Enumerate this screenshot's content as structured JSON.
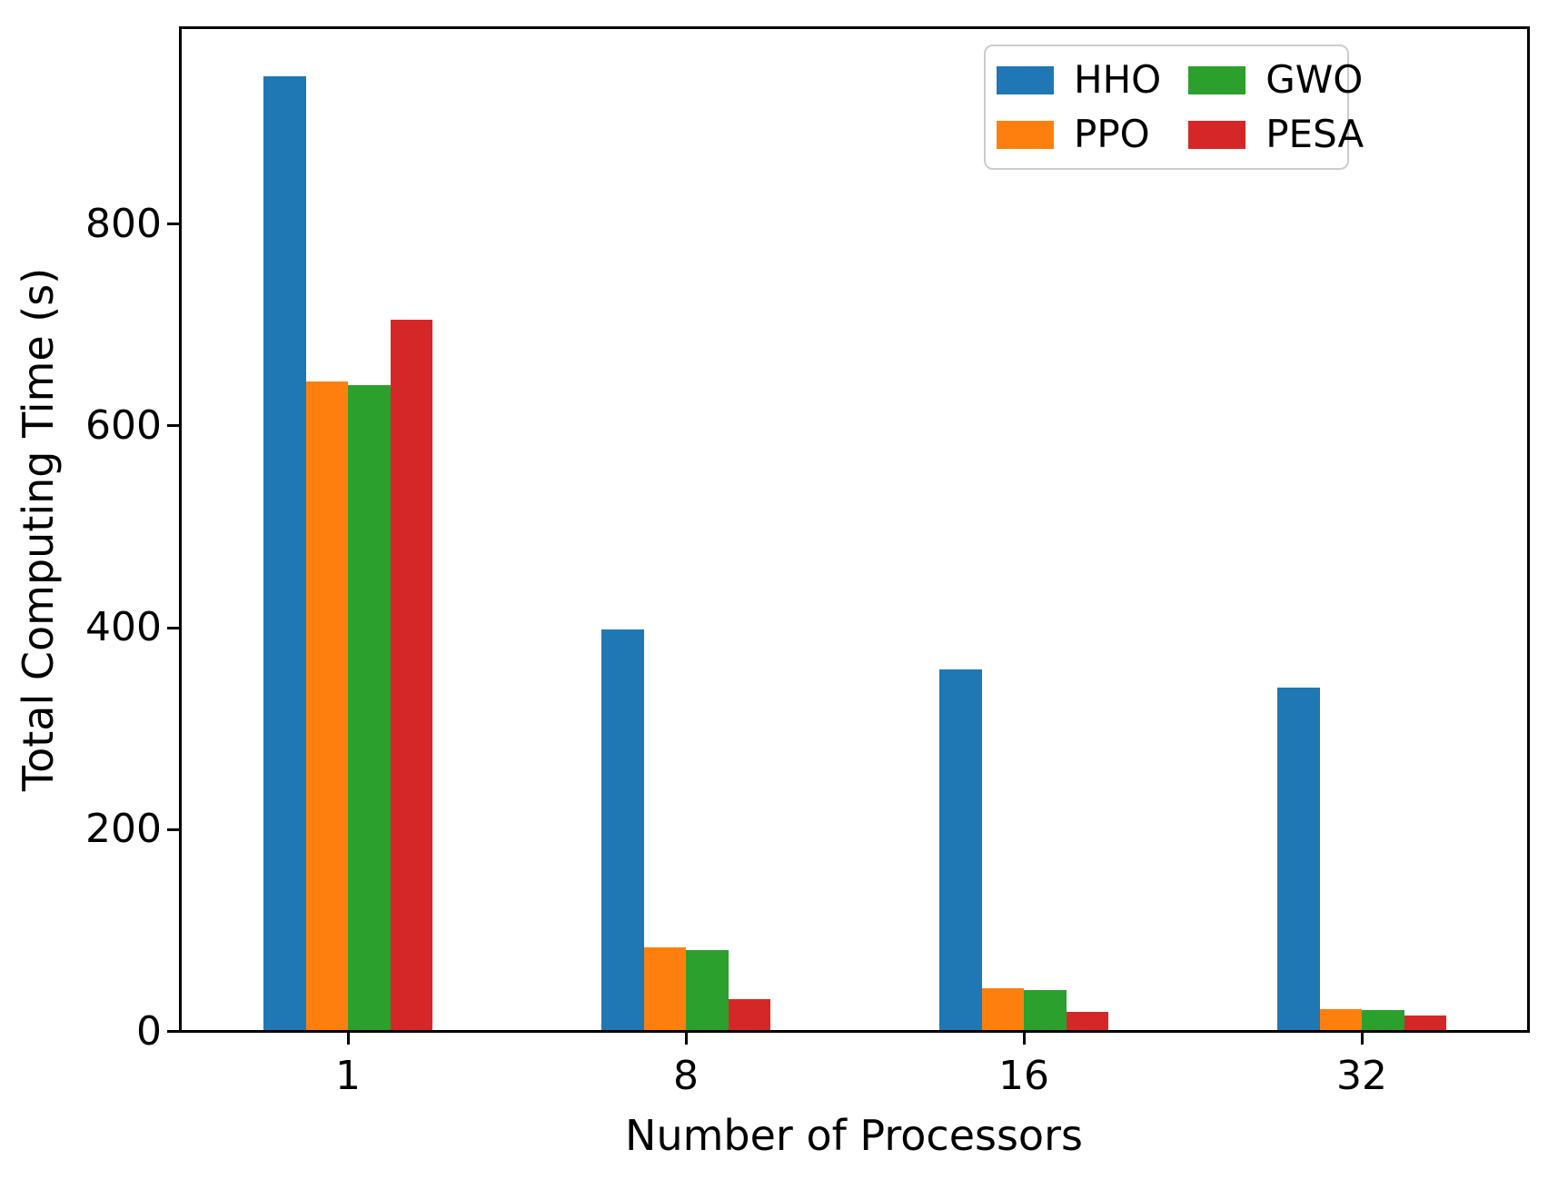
{
  "chart_data": {
    "type": "bar",
    "title": "",
    "xlabel": "Number of Processors",
    "ylabel": "Total Computing Time (s)",
    "categories": [
      "1",
      "8",
      "16",
      "32"
    ],
    "series": [
      {
        "name": "HHO",
        "color": "#1f77b4",
        "values": [
          945,
          397,
          357,
          339
        ]
      },
      {
        "name": "PPO",
        "color": "#ff7f0e",
        "values": [
          643,
          82,
          41,
          21
        ]
      },
      {
        "name": "GWO",
        "color": "#2ca02c",
        "values": [
          639,
          79,
          40,
          20
        ]
      },
      {
        "name": "PESA",
        "color": "#d62728",
        "values": [
          704,
          31,
          18,
          14
        ]
      }
    ],
    "yticks": [
      0,
      200,
      400,
      600,
      800
    ],
    "ylim": [
      0,
      992
    ],
    "grid": false,
    "legend_position": "upper right",
    "legend_columns": 2,
    "axis_color": "#000000",
    "legend_border_color": "#cccccc"
  }
}
